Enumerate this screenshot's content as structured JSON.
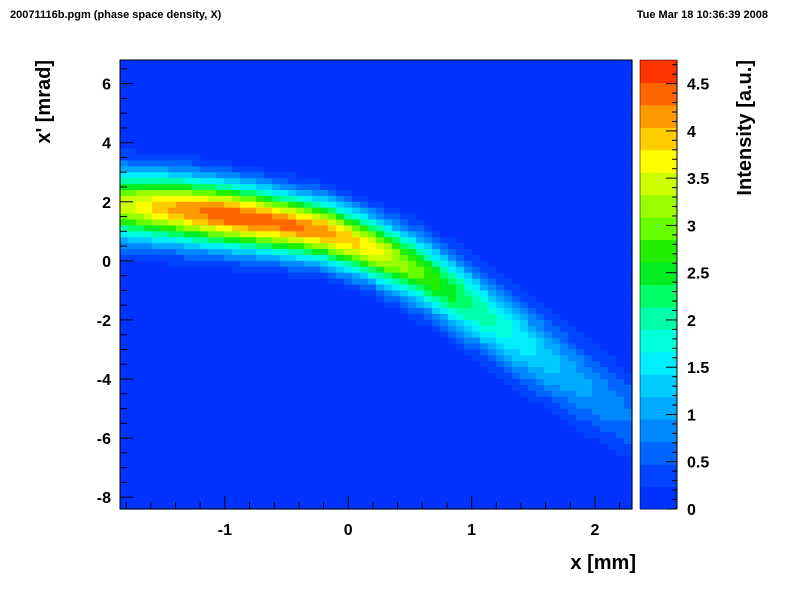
{
  "header": {
    "left": "20071116b.pgm (phase space density, X)",
    "right": "Tue Mar 18 10:36:39 2008"
  },
  "chart_data": {
    "type": "heatmap",
    "title": "",
    "xlabel": "x [mm]",
    "ylabel": "x' [mrad]",
    "zlabel": "Intensity [a.u.]",
    "xlim": [
      -1.85,
      2.3
    ],
    "ylim": [
      -8.4,
      6.8
    ],
    "zlim": [
      0,
      4.75
    ],
    "x_ticks": [
      "-1",
      "0",
      "1",
      "2"
    ],
    "y_ticks": [
      "-8",
      "-6",
      "-4",
      "-2",
      "0",
      "2",
      "4",
      "6"
    ],
    "z_ticks": [
      "0",
      "0.5",
      "1",
      "1.5",
      "2",
      "2.5",
      "3",
      "3.5",
      "4",
      "4.5"
    ],
    "contour_levels": 20,
    "background_level": 0.0,
    "colormap": [
      "#0033ff",
      "#0044ff",
      "#0066ff",
      "#0088ff",
      "#00aaff",
      "#00ccff",
      "#00eeff",
      "#00ffdd",
      "#00ffaa",
      "#00ff66",
      "#00ee22",
      "#22ee00",
      "#66ff00",
      "#99ff00",
      "#ccff00",
      "#ffff00",
      "#ffcc00",
      "#ff9900",
      "#ff6600",
      "#ff3300"
    ],
    "ridge": {
      "x": [
        -1.85,
        -1.4,
        -1.0,
        -0.6,
        -0.2,
        0.2,
        0.6,
        1.0,
        1.4,
        1.8,
        2.3
      ],
      "y": [
        1.9,
        1.75,
        1.55,
        1.3,
        1.0,
        0.4,
        -0.4,
        -1.5,
        -2.7,
        -3.9,
        -5.3
      ],
      "peak": [
        3.4,
        4.1,
        4.5,
        4.4,
        4.2,
        3.7,
        2.9,
        2.2,
        1.6,
        1.1,
        0.7
      ],
      "width": [
        0.8,
        0.78,
        0.75,
        0.72,
        0.7,
        0.72,
        0.78,
        0.85,
        0.9,
        0.95,
        1.0
      ]
    }
  }
}
